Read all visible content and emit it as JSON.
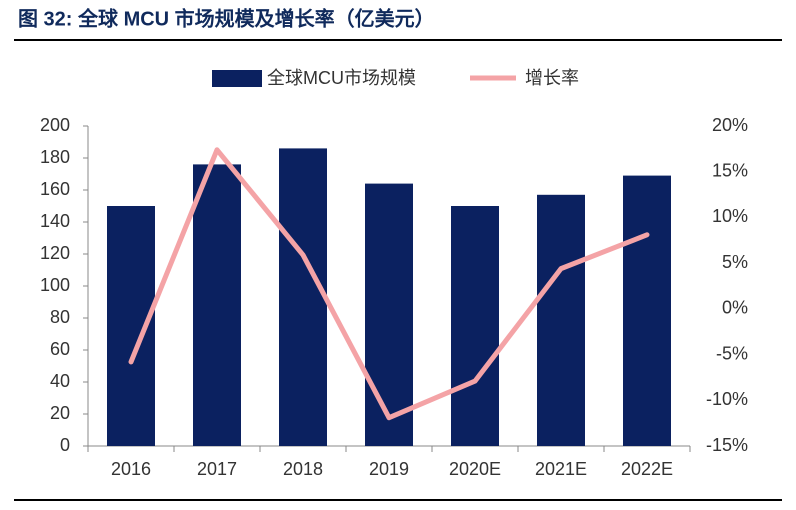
{
  "chart_data": {
    "type": "bar-line",
    "title": "图 32: 全球 MCU 市场规模及增长率（亿美元）",
    "categories": [
      "2016",
      "2017",
      "2018",
      "2019",
      "2020E",
      "2021E",
      "2022E"
    ],
    "series": [
      {
        "name": "全球MCU市场规模",
        "type": "bar",
        "color": "#0b2160",
        "values": [
          150,
          176,
          186,
          164,
          150,
          157,
          169
        ]
      },
      {
        "name": "增长率",
        "type": "line",
        "axis": "y2",
        "color": "#f4a3a6",
        "values": [
          -5.8,
          17.4,
          5.9,
          -11.9,
          -7.9,
          4.4,
          8.1
        ]
      }
    ],
    "ylim": [
      0,
      200
    ],
    "yticks": [
      0,
      20,
      40,
      60,
      80,
      100,
      120,
      140,
      160,
      180,
      200
    ],
    "y2lim": [
      -15,
      20
    ],
    "y2ticks": [
      {
        "value": -15,
        "label": "-15%"
      },
      {
        "value": -10,
        "label": "-10%"
      },
      {
        "value": -5,
        "label": "-5%"
      },
      {
        "value": 0,
        "label": "0%"
      },
      {
        "value": 5,
        "label": "5%"
      },
      {
        "value": 10,
        "label": "10%"
      },
      {
        "value": 15,
        "label": "15%"
      },
      {
        "value": 20,
        "label": "20%"
      }
    ],
    "legend": "top"
  }
}
